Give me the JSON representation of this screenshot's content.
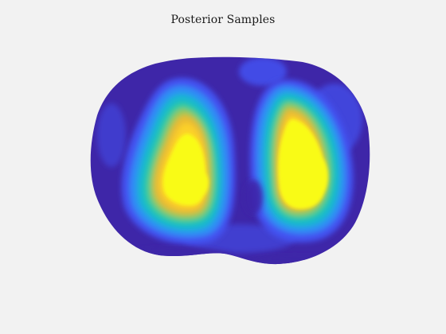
{
  "chart_data": {
    "type": "heatmap",
    "title": "Posterior Samples",
    "xlabel": "",
    "ylabel": "",
    "axes_visible": false,
    "grid": false,
    "colormap": "parula",
    "colormap_stops": [
      "#3e26a8",
      "#4352f1",
      "#2d8ef5",
      "#16b7d0",
      "#2fca9f",
      "#94c85a",
      "#e9ba30",
      "#fbd02c",
      "#f9fb15"
    ],
    "value_range": [
      0,
      1
    ],
    "background_value": 0.05,
    "regions": [
      {
        "name": "left high region",
        "center": [
          -0.36,
          0.12
        ],
        "level": 1.0
      },
      {
        "name": "right high region",
        "center": [
          0.38,
          0.1
        ],
        "level": 1.0
      },
      {
        "name": "central low region",
        "center": [
          0.0,
          0.18
        ],
        "level": 0.2
      }
    ]
  }
}
